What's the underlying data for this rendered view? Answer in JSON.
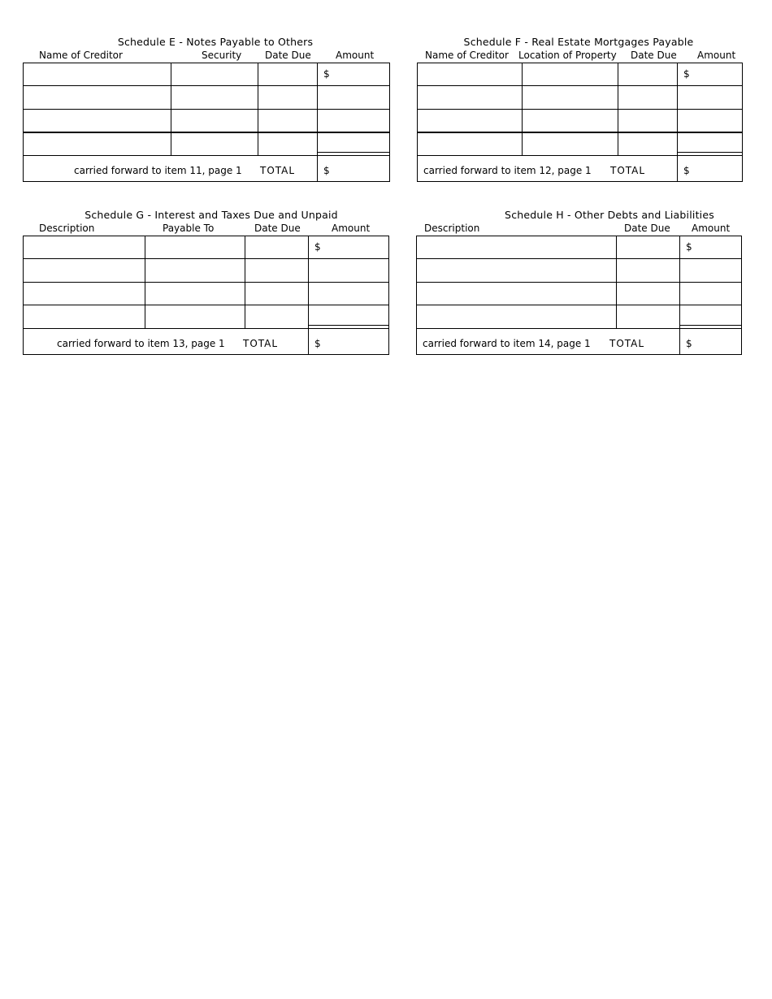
{
  "schedules": [
    {
      "title": "Schedule E - Notes Payable to Others",
      "columns": [
        "Name of Creditor",
        "Security",
        "Date Due",
        "Amount"
      ],
      "first_row_amount": "$",
      "total_label": "carried forward to item 11, page 1",
      "total_word": "TOTAL",
      "total_amount": "$"
    },
    {
      "title": "Schedule F - Real Estate Mortgages Payable",
      "columns": [
        "Name of Creditor",
        "Location of Property",
        "Date Due",
        "Amount"
      ],
      "first_row_amount": "$",
      "total_label": "carried forward to item 12, page 1",
      "total_word": "TOTAL",
      "total_amount": "$"
    },
    {
      "title": "Schedule G - Interest and Taxes Due and Unpaid",
      "columns": [
        "Description",
        "Payable To",
        "Date Due",
        "Amount"
      ],
      "first_row_amount": "$",
      "total_label": "carried forward to item 13, page 1",
      "total_word": "TOTAL",
      "total_amount": "$"
    },
    {
      "title": "Schedule H - Other Debts and Liabilities",
      "columns": [
        "Description",
        "Date Due",
        "Amount"
      ],
      "first_row_amount": "$",
      "total_label": "carried forward to item 14, page 1",
      "total_word": "TOTAL",
      "total_amount": "$"
    }
  ]
}
